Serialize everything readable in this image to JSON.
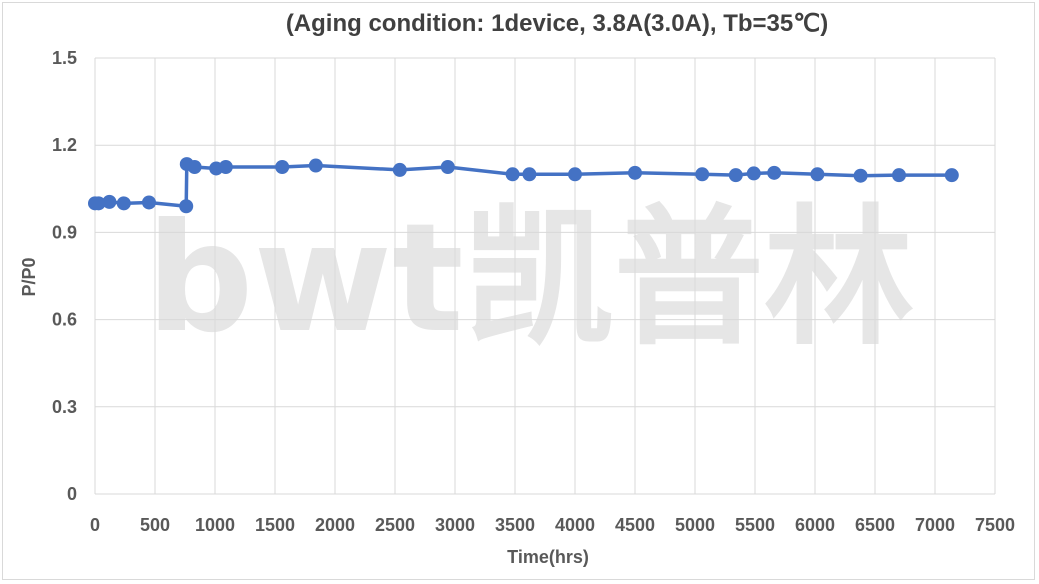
{
  "chart_data": {
    "type": "line",
    "title": "(Aging condition:  1device, 3.8A(3.0A), Tb=35℃)",
    "xlabel": "Time(hrs)",
    "ylabel": "P/P0",
    "xlim": [
      0,
      7500
    ],
    "ylim": [
      0,
      1.5
    ],
    "xticks": [
      0,
      500,
      1000,
      1500,
      2000,
      2500,
      3000,
      3500,
      4000,
      4500,
      5000,
      5500,
      6000,
      6500,
      7000,
      7500
    ],
    "yticks": [
      0,
      0.3,
      0.6,
      0.9,
      1.2,
      1.5
    ],
    "xtick_labels": [
      "0",
      "500",
      "1000",
      "1500",
      "2000",
      "2500",
      "3000",
      "3500",
      "4000",
      "4500",
      "5000",
      "5500",
      "6000",
      "6500",
      "7000",
      "7500"
    ],
    "ytick_labels": [
      "0",
      "0.3",
      "0.6",
      "0.9",
      "1.2",
      "1.5"
    ],
    "grid": true,
    "legend": "none",
    "series": [
      {
        "color": "#4472c4",
        "x": [
          0,
          30,
          120,
          240,
          450,
          760,
          765,
          830,
          1010,
          1090,
          1560,
          1840,
          2540,
          2940,
          3480,
          3620,
          4000,
          4500,
          5060,
          5340,
          5490,
          5660,
          6020,
          6380,
          6700,
          7140
        ],
        "y": [
          1.0,
          1.0,
          1.005,
          1.0,
          1.003,
          0.99,
          1.135,
          1.125,
          1.12,
          1.125,
          1.125,
          1.13,
          1.115,
          1.125,
          1.1,
          1.1,
          1.1,
          1.105,
          1.1,
          1.097,
          1.103,
          1.105,
          1.1,
          1.095,
          1.097,
          1.097
        ]
      }
    ]
  },
  "watermark": "bwt凯普林"
}
